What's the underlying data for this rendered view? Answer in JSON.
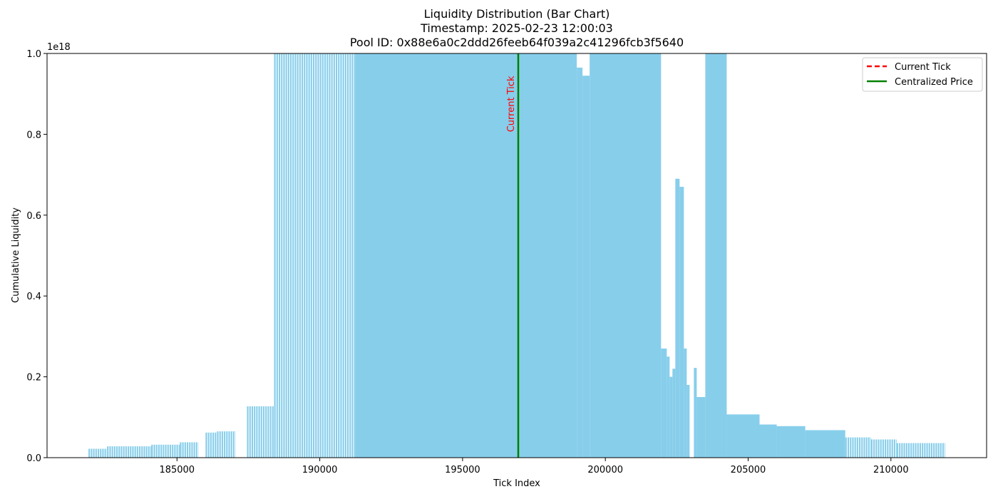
{
  "chart_data": {
    "type": "bar",
    "title_lines": [
      "Liquidity Distribution (Bar Chart)",
      "Timestamp: 2025-02-23 12:00:03",
      "Pool ID: 0x88e6a0c2ddd26feeb64f039a2c41296fcb3f5640"
    ],
    "xlabel": "Tick Index",
    "ylabel": "Cumulative Liquidity",
    "y_offset_text": "1e18",
    "xlim": [
      180450,
      213350
    ],
    "ylim": [
      0,
      1.0
    ],
    "x_ticks": [
      185000,
      190000,
      195000,
      200000,
      205000,
      210000
    ],
    "y_ticks": [
      0.0,
      0.2,
      0.4,
      0.6,
      0.8,
      1.0
    ],
    "x_tick_labels": [
      "185000",
      "190000",
      "195000",
      "200000",
      "205000",
      "210000"
    ],
    "y_tick_labels": [
      "0.0",
      "0.2",
      "0.4",
      "0.6",
      "0.8",
      "1.0"
    ],
    "bar_color": "#87CEEB",
    "bars": [
      {
        "x0": 181900,
        "x1": 182550,
        "value": 0.022,
        "sparse": true
      },
      {
        "x0": 182550,
        "x1": 184100,
        "value": 0.028,
        "sparse": true
      },
      {
        "x0": 184100,
        "x1": 185100,
        "value": 0.032,
        "sparse": true
      },
      {
        "x0": 185100,
        "x1": 185750,
        "value": 0.038,
        "sparse": true
      },
      {
        "x0": 186000,
        "x1": 186400,
        "value": 0.062,
        "sparse": true
      },
      {
        "x0": 186400,
        "x1": 187050,
        "value": 0.065,
        "sparse": true
      },
      {
        "x0": 187450,
        "x1": 188400,
        "value": 0.127,
        "sparse": true
      },
      {
        "x0": 188400,
        "x1": 191250,
        "value": 1.0,
        "sparse": true
      },
      {
        "x0": 191250,
        "x1": 199000,
        "value": 1.0
      },
      {
        "x0": 199000,
        "x1": 199200,
        "value": 0.965
      },
      {
        "x0": 199200,
        "x1": 199450,
        "value": 0.945
      },
      {
        "x0": 199450,
        "x1": 201950,
        "value": 1.0
      },
      {
        "x0": 201950,
        "x1": 202150,
        "value": 0.27
      },
      {
        "x0": 202150,
        "x1": 202250,
        "value": 0.25
      },
      {
        "x0": 202250,
        "x1": 202350,
        "value": 0.2
      },
      {
        "x0": 202350,
        "x1": 202450,
        "value": 0.22
      },
      {
        "x0": 202450,
        "x1": 202600,
        "value": 0.69
      },
      {
        "x0": 202600,
        "x1": 202750,
        "value": 0.67
      },
      {
        "x0": 202750,
        "x1": 202850,
        "value": 0.27
      },
      {
        "x0": 202850,
        "x1": 202950,
        "value": 0.18
      },
      {
        "x0": 203100,
        "x1": 203200,
        "value": 0.222
      },
      {
        "x0": 203200,
        "x1": 203500,
        "value": 0.15
      },
      {
        "x0": 203500,
        "x1": 204250,
        "value": 1.0
      },
      {
        "x0": 204250,
        "x1": 205400,
        "value": 0.107
      },
      {
        "x0": 205400,
        "x1": 206000,
        "value": 0.082
      },
      {
        "x0": 206000,
        "x1": 207000,
        "value": 0.078
      },
      {
        "x0": 207000,
        "x1": 208400,
        "value": 0.068
      },
      {
        "x0": 208400,
        "x1": 209300,
        "value": 0.05,
        "sparse": true
      },
      {
        "x0": 209300,
        "x1": 210200,
        "value": 0.045,
        "sparse": true
      },
      {
        "x0": 210200,
        "x1": 211900,
        "value": 0.036,
        "sparse": true
      }
    ],
    "current_tick": 196950,
    "centralized_price_tick": 196950,
    "annotation": {
      "text": "Current Tick",
      "x": 196950,
      "y_top": 0.95,
      "y_bottom": 0.8,
      "color": "#ff0000"
    },
    "legend": {
      "placement": "top-right",
      "entries": [
        {
          "label": "Current Tick",
          "color": "#ff0000",
          "style": "dashed"
        },
        {
          "label": "Centralized Price",
          "color": "#008000",
          "style": "solid"
        }
      ]
    }
  }
}
